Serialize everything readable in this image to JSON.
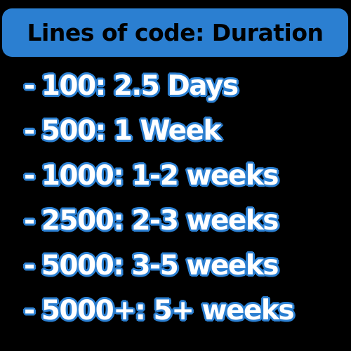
{
  "header": {
    "title": "Lines of code: Duration"
  },
  "colors": {
    "background": "#000000",
    "accent": "#2b7fd1",
    "text": "#ffffff"
  },
  "items": [
    {
      "bullet": "-",
      "text": "100: 2.5 Days"
    },
    {
      "bullet": "-",
      "text": "500: 1 Week"
    },
    {
      "bullet": "-",
      "text": "1000: 1-2 weeks"
    },
    {
      "bullet": "-",
      "text": "2500: 2-3 weeks"
    },
    {
      "bullet": "-",
      "text": "5000: 3-5 weeks"
    },
    {
      "bullet": "-",
      "text": "5000+: 5+ weeks"
    }
  ]
}
